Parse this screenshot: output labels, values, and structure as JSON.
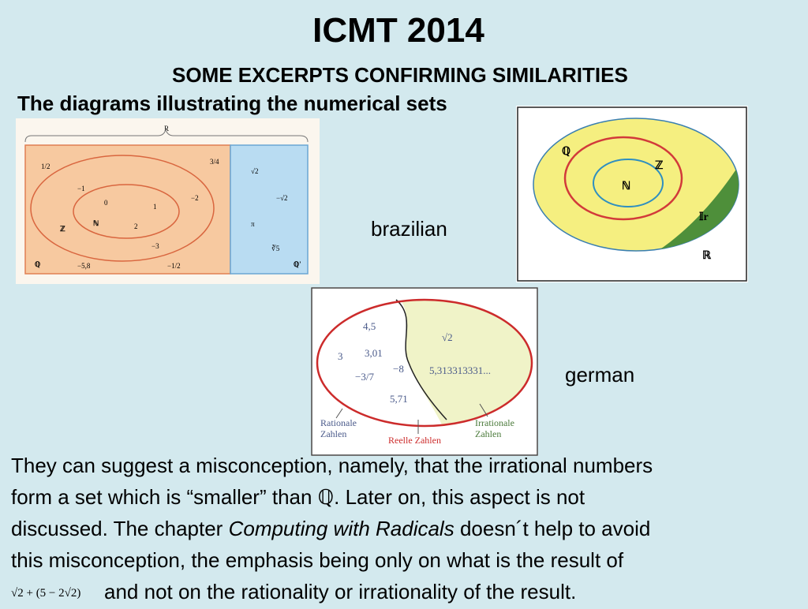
{
  "title": "ICMT 2014",
  "subtitle": "SOME EXCERPTS CONFIRMING SIMILARITIES",
  "heading": "The diagrams illustrating the numerical sets",
  "label_brazilian": "brazilian",
  "label_german": "german",
  "diagram_brazil_1": {
    "top_label": "R",
    "set_labels": [
      "ℕ",
      "ℤ",
      "ℚ",
      "ℚ'"
    ],
    "rational_numbers": [
      "1/2",
      "3/4",
      "−1",
      "0",
      "1",
      "−2",
      "2",
      "−3",
      "−5,8",
      "−1/2"
    ],
    "irrational_numbers": [
      "√2",
      "−√2",
      "π",
      "∛5"
    ]
  },
  "diagram_brazil_2": {
    "set_labels": [
      "ℚ",
      "ℤ",
      "ℕ",
      "𝕀r",
      "ℝ"
    ]
  },
  "diagram_german": {
    "rational_numbers": [
      "4,5",
      "3",
      "3,01",
      "−8",
      "−3/7",
      "5,71"
    ],
    "irrational_numbers": [
      "√2",
      "5,313313331..."
    ],
    "captions": [
      "Rationale",
      "Zahlen",
      "Reelle Zahlen",
      "Irrationale",
      "Zahlen"
    ]
  },
  "paragraph": {
    "line1": "They can suggest a misconception, namely, that the irrational numbers",
    "line2a": "form a set which is “smaller” than ",
    "line2_symbol": "ℚ",
    "line2b": ". Later on, this aspect is not",
    "line3a": "discussed.  The chapter ",
    "line3_italic": "Computing with Radicals",
    "line3b": " doesn´t help to avoid",
    "line4": "this misconception, the emphasis being only on what is the result of",
    "formula": "√2 + (5 − 2√2)",
    "line5": "and not on the rationality or irrationality of the result."
  }
}
